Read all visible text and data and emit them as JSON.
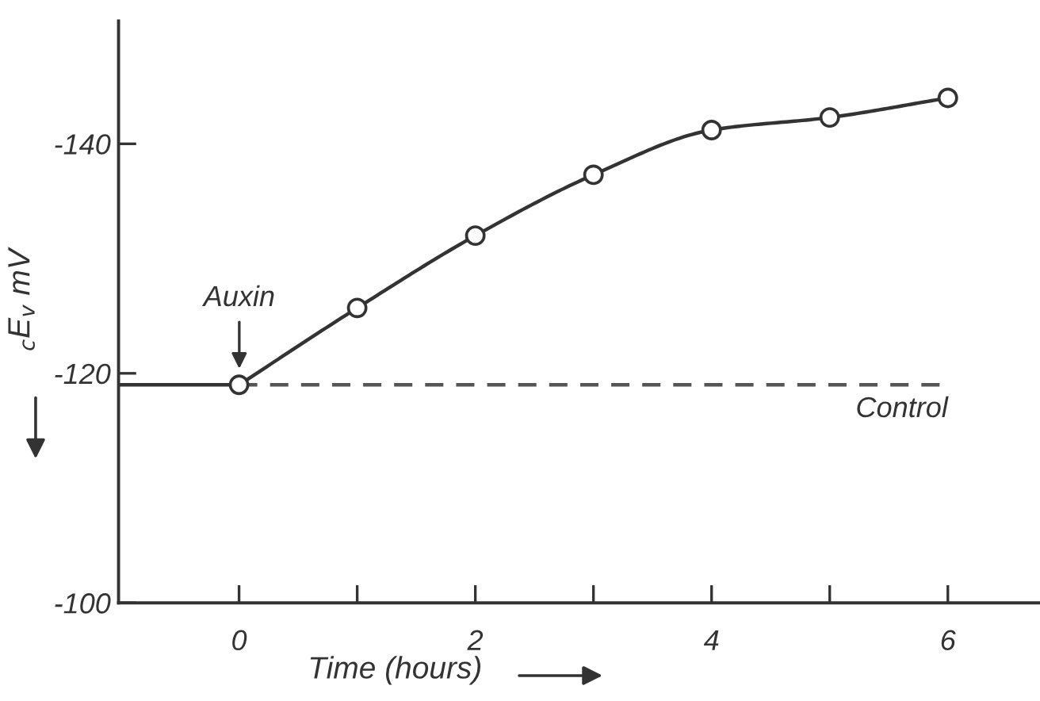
{
  "chart_data": {
    "type": "line",
    "xlabel": "Time (hours)",
    "ylabel": "$_{c}$E$_{v}$ mV",
    "xlim": [
      -1.02,
      6.78
    ],
    "ylim": [
      -100,
      -150.7
    ],
    "xticks": [
      0,
      {
        "value": 1,
        "label": null
      },
      2,
      {
        "value": 3,
        "label": null
      },
      4,
      {
        "value": 5,
        "label": null
      },
      6
    ],
    "yticks": [
      -100,
      -120,
      -140
    ],
    "series": [
      {
        "color": "#333333",
        "x": [
          0,
          1,
          2,
          3,
          4,
          5,
          6
        ],
        "values": [
          -119,
          -125.7,
          -132,
          -137.3,
          -141.2,
          -142.3,
          -144
        ],
        "marker": "circle",
        "line_style": "solid"
      },
      {
        "color": "#333333",
        "x": [
          -1.02,
          0
        ],
        "values": [
          -119,
          -119
        ],
        "marker": "none",
        "line_style": "solid"
      },
      {
        "color": "#555555",
        "x": [
          0,
          5.93
        ],
        "values": [
          -119,
          -119
        ],
        "marker": "none",
        "line_style": "dashed"
      }
    ],
    "annotations": [
      "Auxin",
      "Control"
    ],
    "grid": false,
    "legend": false
  }
}
